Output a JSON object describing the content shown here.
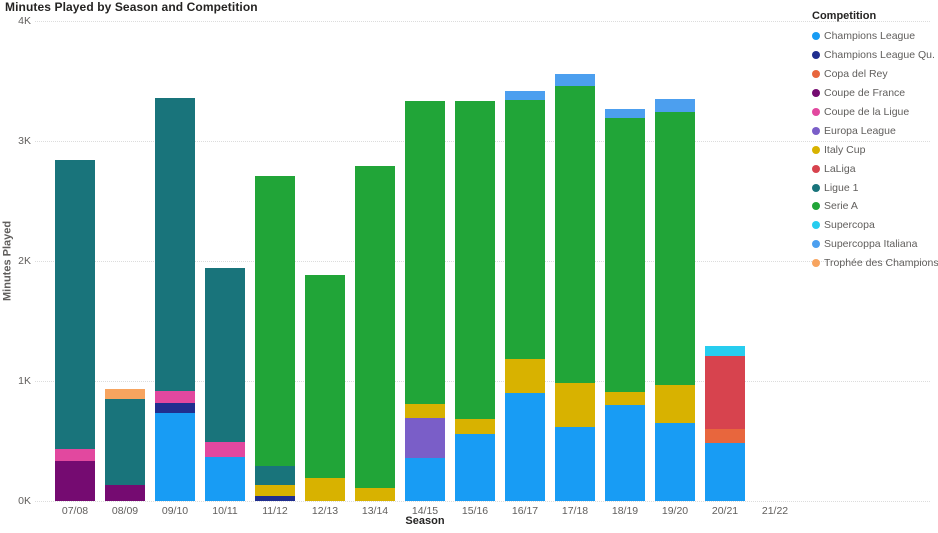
{
  "title": "Minutes Played by Season and Competition",
  "y_axis": {
    "title": "Minutes Played",
    "ticks": [
      "4K",
      "3K",
      "2K",
      "1K",
      "0K"
    ],
    "max": 4000
  },
  "x_axis": {
    "title": "Season"
  },
  "legend": {
    "title": "Competition",
    "position": "right"
  },
  "chart_data": {
    "type": "bar",
    "stacked": true,
    "title": "Minutes Played by Season and Competition",
    "xlabel": "Season",
    "ylabel": "Minutes Played",
    "units": "minutes",
    "ylim": [
      0,
      4000
    ],
    "grid": true,
    "legend_position": "right",
    "categories": [
      "07/08",
      "08/09",
      "09/10",
      "10/11",
      "11/12",
      "12/13",
      "13/14",
      "14/15",
      "15/16",
      "16/17",
      "17/18",
      "18/19",
      "19/20",
      "20/21",
      "21/22"
    ],
    "series": [
      {
        "name": "Champions League",
        "color": "#189CF4",
        "values": [
          0,
          0,
          730,
          370,
          0,
          0,
          0,
          360,
          560,
          900,
          620,
          800,
          650,
          480,
          0
        ]
      },
      {
        "name": "Champions League Qu.",
        "color": "#202E8F",
        "values": [
          0,
          0,
          90,
          0,
          40,
          0,
          0,
          0,
          0,
          0,
          0,
          0,
          0,
          0,
          0
        ]
      },
      {
        "name": "Copa del Rey",
        "color": "#E8663D",
        "values": [
          0,
          0,
          0,
          0,
          0,
          0,
          0,
          0,
          0,
          0,
          0,
          0,
          0,
          120,
          0
        ]
      },
      {
        "name": "Coupe de France",
        "color": "#750B71",
        "values": [
          330,
          130,
          0,
          0,
          0,
          0,
          0,
          0,
          0,
          0,
          0,
          0,
          0,
          0,
          0
        ]
      },
      {
        "name": "Coupe de la Ligue",
        "color": "#E2489F",
        "values": [
          100,
          0,
          100,
          120,
          0,
          0,
          0,
          0,
          0,
          0,
          0,
          0,
          0,
          0,
          0
        ]
      },
      {
        "name": "Europa League",
        "color": "#7A5EC8",
        "values": [
          0,
          0,
          0,
          0,
          0,
          0,
          0,
          330,
          0,
          0,
          0,
          0,
          0,
          0,
          0
        ]
      },
      {
        "name": "Italy Cup",
        "color": "#D8B200",
        "values": [
          0,
          0,
          0,
          0,
          90,
          190,
          110,
          120,
          120,
          280,
          360,
          110,
          320,
          0,
          0
        ]
      },
      {
        "name": "LaLiga",
        "color": "#D7434E",
        "values": [
          0,
          0,
          0,
          0,
          0,
          0,
          0,
          0,
          0,
          0,
          0,
          0,
          0,
          610,
          0
        ]
      },
      {
        "name": "Ligue 1",
        "color": "#19747B",
        "values": [
          2410,
          720,
          2440,
          1450,
          160,
          0,
          0,
          0,
          0,
          0,
          0,
          0,
          0,
          0,
          0
        ]
      },
      {
        "name": "Serie A",
        "color": "#21A538",
        "values": [
          0,
          0,
          0,
          0,
          2420,
          1690,
          2680,
          2520,
          2650,
          2160,
          2480,
          2280,
          2270,
          0,
          0
        ]
      },
      {
        "name": "Supercopa",
        "color": "#27CDEF",
        "values": [
          0,
          0,
          0,
          0,
          0,
          0,
          0,
          0,
          0,
          0,
          0,
          0,
          0,
          80,
          0
        ]
      },
      {
        "name": "Supercoppa Italiana",
        "color": "#4C9FEF",
        "values": [
          0,
          0,
          0,
          0,
          0,
          0,
          0,
          0,
          0,
          80,
          100,
          80,
          110,
          0,
          0
        ]
      },
      {
        "name": "Trophée des Champions",
        "color": "#F7A45F",
        "values": [
          0,
          80,
          0,
          0,
          0,
          0,
          0,
          0,
          0,
          0,
          0,
          0,
          0,
          0,
          0
        ]
      }
    ]
  }
}
